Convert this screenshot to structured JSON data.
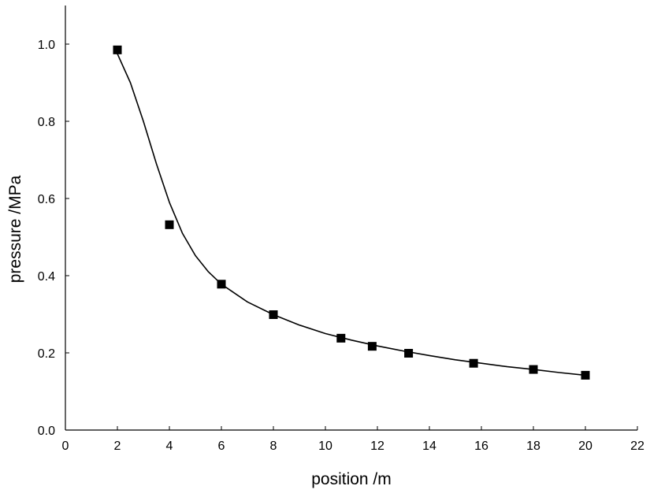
{
  "chart_data": {
    "type": "scatter",
    "title": "",
    "xlabel": "position /m",
    "ylabel": "pressure /MPa",
    "xlim": [
      0,
      22
    ],
    "ylim": [
      0,
      1.1
    ],
    "x_ticks": [
      "0",
      "2",
      "4",
      "6",
      "8",
      "10",
      "12",
      "14",
      "16",
      "18",
      "20",
      "22"
    ],
    "y_ticks": [
      "0.0",
      "0.2",
      "0.4",
      "0.6",
      "0.8",
      "1.0"
    ],
    "grid": false,
    "series": [
      {
        "kind": "points",
        "marker": "square",
        "color": "#000000",
        "x": [
          2.0,
          4.0,
          6.0,
          8.0,
          10.6,
          11.8,
          13.2,
          15.7,
          18.0,
          20.0
        ],
        "y": [
          0.985,
          0.532,
          0.378,
          0.299,
          0.238,
          0.217,
          0.199,
          0.173,
          0.157,
          0.142
        ]
      },
      {
        "kind": "line",
        "color": "#000000",
        "x": [
          2.0,
          2.5,
          3.0,
          3.5,
          4.0,
          4.5,
          5.0,
          5.5,
          6.0,
          7.0,
          8.0,
          9.0,
          10.0,
          11.0,
          12.0,
          13.0,
          14.0,
          15.0,
          16.0,
          17.0,
          18.0,
          19.0,
          20.0
        ],
        "y": [
          0.975,
          0.9,
          0.8,
          0.69,
          0.59,
          0.51,
          0.452,
          0.41,
          0.378,
          0.332,
          0.299,
          0.272,
          0.25,
          0.233,
          0.218,
          0.205,
          0.193,
          0.182,
          0.173,
          0.164,
          0.157,
          0.149,
          0.142
        ]
      }
    ]
  }
}
